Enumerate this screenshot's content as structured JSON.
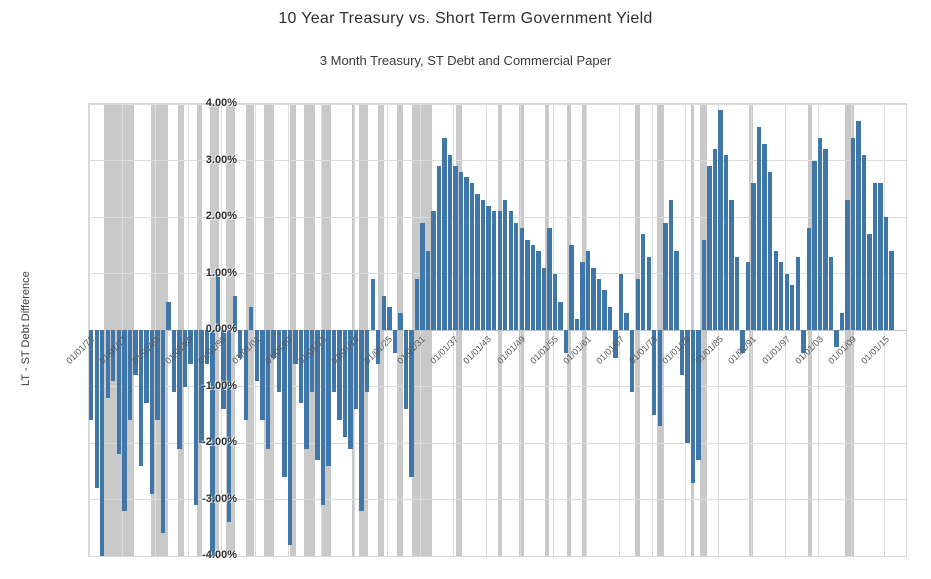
{
  "title": "10 Year Treasury vs. Short Term Government Yield",
  "subtitle": "3 Month Treasury, ST Debt and Commercial Paper",
  "chart_data": {
    "type": "bar",
    "title": "10 Year Treasury vs. Short Term Government Yield",
    "subtitle": "3 Month Treasury, ST Debt and Commercial Paper",
    "ylabel": "LT - ST Debt Difference",
    "xlabel": "",
    "ylim": [
      -4,
      4
    ],
    "grid": true,
    "legend": "none",
    "y_tick_values": [
      4,
      3,
      2,
      1,
      0,
      -1,
      -2,
      -3,
      -4
    ],
    "y_tick_labels": [
      "4.00%",
      "3.00%",
      "2.00%",
      "1.00%",
      "0.00%",
      "-1.00%",
      "-2.00%",
      "-3.00%",
      "-4.00%"
    ],
    "x_range_years": [
      1871,
      2019
    ],
    "x_tick_years": [
      1871,
      1877,
      1883,
      1889,
      1895,
      1901,
      1907,
      1913,
      1919,
      1925,
      1931,
      1937,
      1943,
      1949,
      1955,
      1961,
      1967,
      1973,
      1979,
      1985,
      1991,
      1997,
      2003,
      2009,
      2015
    ],
    "x_tick_labels": [
      "01/01/71",
      "01/01/77",
      "01/01/83",
      "01/01/89",
      "01/01/95",
      "01/01/01",
      "01/01/07",
      "01/01/13",
      "01/01/19",
      "01/01/25",
      "01/01/31",
      "01/01/37",
      "01/01/43",
      "01/01/49",
      "01/01/55",
      "01/01/61",
      "01/01/67",
      "01/01/73",
      "01/01/79",
      "01/01/85",
      "01/01/91",
      "01/01/97",
      "01/01/03",
      "01/01/09",
      "01/01/15"
    ],
    "series": [
      {
        "name": "LT - ST Debt Difference (percentage points)",
        "start_year": 1871,
        "interval_years": 1,
        "values": [
          -1.6,
          -2.8,
          -4.0,
          -1.2,
          -0.9,
          -2.2,
          -3.2,
          -1.6,
          -0.8,
          -2.4,
          -1.3,
          -2.9,
          -1.6,
          -3.6,
          0.5,
          -1.1,
          -2.1,
          -1.0,
          -0.6,
          -3.1,
          -2.0,
          -0.6,
          -4.0,
          1.0,
          -1.4,
          -3.4,
          0.6,
          -0.5,
          -1.6,
          0.4,
          -0.9,
          -1.6,
          -2.1,
          -0.5,
          -1.1,
          -2.6,
          -3.8,
          -0.6,
          -1.3,
          -2.1,
          -1.1,
          -2.3,
          -3.1,
          -2.4,
          -1.1,
          -1.6,
          -1.9,
          -2.1,
          -1.4,
          -3.2,
          -1.1,
          0.9,
          -0.6,
          0.6,
          0.4,
          -0.4,
          0.3,
          -1.4,
          -2.6,
          0.9,
          1.9,
          1.4,
          2.1,
          2.9,
          3.4,
          3.1,
          2.9,
          2.8,
          2.7,
          2.6,
          2.4,
          2.3,
          2.2,
          2.1,
          2.1,
          2.3,
          2.1,
          1.9,
          1.8,
          1.6,
          1.5,
          1.4,
          1.1,
          1.8,
          1.0,
          0.5,
          -0.4,
          1.5,
          0.2,
          1.2,
          1.4,
          1.1,
          0.9,
          0.7,
          0.4,
          -0.5,
          1.0,
          0.3,
          -1.1,
          0.9,
          1.7,
          1.3,
          -1.5,
          -1.7,
          1.9,
          2.3,
          1.4,
          -0.8,
          -2.0,
          -2.7,
          -2.3,
          1.6,
          2.9,
          3.2,
          3.9,
          3.1,
          2.3,
          1.3,
          -0.4,
          1.2,
          2.6,
          3.6,
          3.3,
          2.8,
          1.4,
          1.2,
          1.0,
          0.8,
          1.3,
          -0.4,
          1.8,
          3.0,
          3.4,
          3.2,
          1.3,
          -0.3,
          0.3,
          2.3,
          3.4,
          3.7,
          3.1,
          1.7,
          2.6,
          2.6,
          2.0,
          1.4
        ]
      }
    ],
    "recession_bands_years": [
      [
        1873.8,
        1879.2
      ],
      [
        1882.2,
        1885.4
      ],
      [
        1887.2,
        1888.2
      ],
      [
        1890.5,
        1891.4
      ],
      [
        1893.0,
        1894.5
      ],
      [
        1895.9,
        1897.4
      ],
      [
        1899.5,
        1900.9
      ],
      [
        1902.7,
        1904.6
      ],
      [
        1907.4,
        1908.5
      ],
      [
        1910.0,
        1912.0
      ],
      [
        1913.0,
        1914.9
      ],
      [
        1918.6,
        1919.2
      ],
      [
        1920.0,
        1921.5
      ],
      [
        1923.4,
        1924.5
      ],
      [
        1926.8,
        1927.9
      ],
      [
        1929.6,
        1933.2
      ],
      [
        1937.4,
        1938.5
      ],
      [
        1945.1,
        1945.8
      ],
      [
        1948.9,
        1949.8
      ],
      [
        1953.6,
        1954.4
      ],
      [
        1957.6,
        1958.3
      ],
      [
        1960.3,
        1961.1
      ],
      [
        1969.9,
        1970.9
      ],
      [
        1973.9,
        1975.2
      ],
      [
        1980.0,
        1980.6
      ],
      [
        1981.6,
        1982.9
      ],
      [
        1990.6,
        1991.2
      ],
      [
        2001.2,
        2001.9
      ],
      [
        2007.9,
        2009.5
      ]
    ],
    "colors": {
      "bar": "#4076a8",
      "recession_band": "#c9c9c9",
      "gridline": "#dcdcdc",
      "zero_axis": "#c0c0c0",
      "axis_text": "#595959",
      "y_tick_text": "#2f2f2f"
    }
  }
}
